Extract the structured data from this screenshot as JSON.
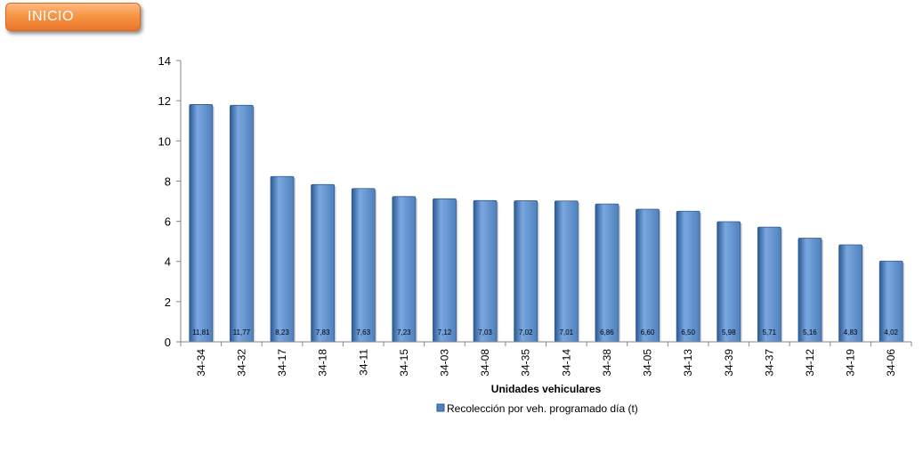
{
  "header": {
    "inicio_label": "INICIO"
  },
  "colors": {
    "bar": "#4f81bd",
    "bar_dark": "#2c5a94",
    "bar_light": "#7aa7e0",
    "axis": "#868686",
    "button": "#f79646"
  },
  "chart_data": {
    "type": "bar",
    "title": "",
    "xlabel": "Unidades vehiculares",
    "ylabel": "",
    "ylim": [
      0,
      14
    ],
    "yticks": [
      0,
      2,
      4,
      6,
      8,
      10,
      12,
      14
    ],
    "grid": false,
    "legend_position": "bottom",
    "categories": [
      "34-34",
      "34-32",
      "34-17",
      "34-18",
      "34-11",
      "34-15",
      "34-03",
      "34-08",
      "34-35",
      "34-14",
      "34-38",
      "34-05",
      "34-13",
      "34-39",
      "34-37",
      "34-12",
      "34-19",
      "34-06"
    ],
    "series": [
      {
        "name": "Recolección por veh. programado día (t)",
        "values": [
          11.81,
          11.77,
          8.23,
          7.83,
          7.63,
          7.23,
          7.12,
          7.03,
          7.02,
          7.01,
          6.86,
          6.6,
          6.5,
          5.98,
          5.71,
          5.16,
          4.83,
          4.02
        ],
        "data_labels": [
          "11,81",
          "11,77",
          "8,23",
          "7,83",
          "7,63",
          "7,23",
          "7,12",
          "7,03",
          "7,02",
          "7,01",
          "6,86",
          "6,60",
          "6,50",
          "5,98",
          "5,71",
          "5,16",
          "4,83",
          "4,02"
        ]
      }
    ]
  }
}
